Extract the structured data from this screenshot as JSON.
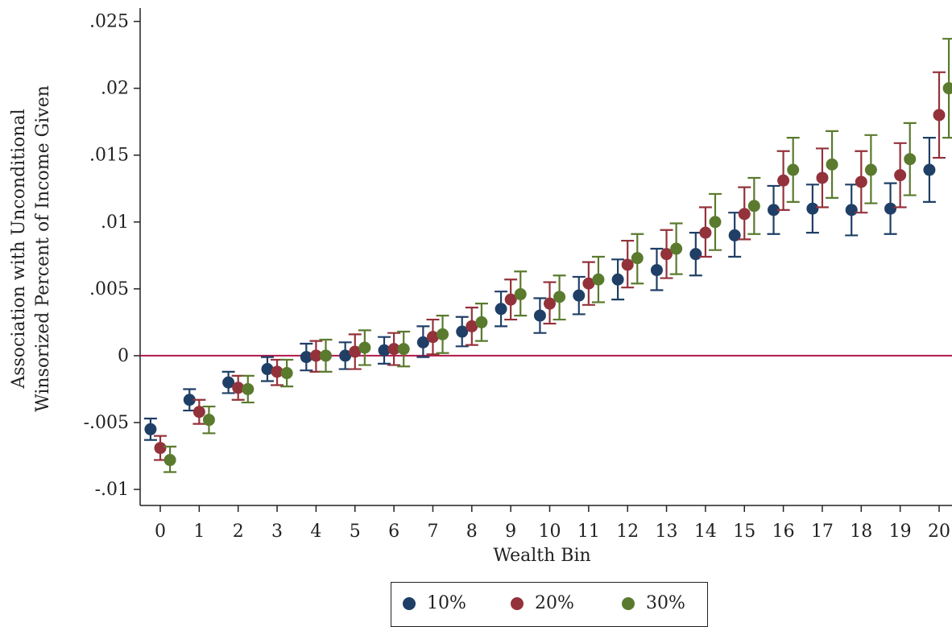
{
  "chart_data": {
    "type": "scatter",
    "subtype": "point estimates with confidence-interval error bars",
    "xlabel": "Wealth Bin",
    "ylabel": [
      "Association with Unconditional",
      "Winsorized Percent of Income Given"
    ],
    "xlim": [
      -0.5,
      20.3
    ],
    "ylim": [
      -0.0112,
      0.026
    ],
    "x_ticks": [
      0,
      1,
      2,
      3,
      4,
      5,
      6,
      7,
      8,
      9,
      10,
      11,
      12,
      13,
      14,
      15,
      16,
      17,
      18,
      19,
      20
    ],
    "y_ticks": [
      -0.01,
      -0.005,
      0,
      0.005,
      0.01,
      0.015,
      0.02,
      0.025
    ],
    "y_tick_labels": [
      "-.01",
      "-.005",
      "0",
      ".005",
      ".01",
      ".015",
      ".02",
      ".025"
    ],
    "reference_line": {
      "y": 0,
      "color": "#b0184a"
    },
    "grid": false,
    "legend_position": "bottom",
    "series": [
      {
        "name": "10%",
        "color": "#1f3f66",
        "offset": -0.25,
        "values": [
          -0.0055,
          -0.0033,
          -0.002,
          -0.001,
          -0.0001,
          0.0,
          0.0004,
          0.001,
          0.0018,
          0.0035,
          0.003,
          0.0045,
          0.0057,
          0.0064,
          0.0076,
          0.009,
          0.0109,
          0.011,
          0.0109,
          0.011,
          0.0139
        ],
        "ci_low": [
          -0.0063,
          -0.0041,
          -0.0028,
          -0.0019,
          -0.0011,
          -0.001,
          -0.0006,
          -0.0001,
          0.0007,
          0.0022,
          0.0017,
          0.0031,
          0.0042,
          0.0049,
          0.006,
          0.0074,
          0.0091,
          0.0092,
          0.009,
          0.0091,
          0.0115
        ],
        "ci_high": [
          -0.0047,
          -0.0025,
          -0.0012,
          -0.0001,
          0.0009,
          0.001,
          0.0014,
          0.0022,
          0.0029,
          0.0048,
          0.0043,
          0.0059,
          0.0072,
          0.008,
          0.0092,
          0.0107,
          0.0127,
          0.0128,
          0.0128,
          0.0129,
          0.0163
        ]
      },
      {
        "name": "20%",
        "color": "#93323a",
        "offset": 0,
        "values": [
          -0.0069,
          -0.0042,
          -0.0024,
          -0.0012,
          0.0,
          0.0003,
          0.0005,
          0.0014,
          0.0022,
          0.0042,
          0.0039,
          0.0054,
          0.0068,
          0.0076,
          0.0092,
          0.0106,
          0.0131,
          0.0133,
          0.013,
          0.0135,
          0.018
        ],
        "ci_low": [
          -0.0078,
          -0.0051,
          -0.0033,
          -0.0022,
          -0.0012,
          -0.001,
          -0.0007,
          0.0001,
          0.0008,
          0.0027,
          0.0024,
          0.0038,
          0.0051,
          0.0058,
          0.0074,
          0.0087,
          0.0109,
          0.0111,
          0.0107,
          0.0111,
          0.0148
        ],
        "ci_high": [
          -0.006,
          -0.0033,
          -0.0015,
          -0.0003,
          0.0011,
          0.0016,
          0.0017,
          0.0027,
          0.0036,
          0.0057,
          0.0055,
          0.007,
          0.0086,
          0.0094,
          0.0111,
          0.0126,
          0.0153,
          0.0155,
          0.0153,
          0.0159,
          0.0212
        ]
      },
      {
        "name": "30%",
        "color": "#5a7a2e",
        "offset": 0.25,
        "values": [
          -0.0078,
          -0.0048,
          -0.0025,
          -0.0013,
          0.0,
          0.0006,
          0.0005,
          0.0016,
          0.0025,
          0.0046,
          0.0044,
          0.0057,
          0.0073,
          0.008,
          0.01,
          0.0112,
          0.0139,
          0.0143,
          0.0139,
          0.0147,
          0.02
        ],
        "ci_low": [
          -0.0087,
          -0.0058,
          -0.0035,
          -0.0023,
          -0.0012,
          -0.0007,
          -0.0008,
          0.0002,
          0.0011,
          0.003,
          0.0027,
          0.004,
          0.0054,
          0.0061,
          0.0079,
          0.0091,
          0.0115,
          0.0118,
          0.0114,
          0.012,
          0.0163
        ],
        "ci_high": [
          -0.0068,
          -0.0038,
          -0.0015,
          -0.0003,
          0.0012,
          0.0019,
          0.0018,
          0.003,
          0.0039,
          0.0063,
          0.006,
          0.0074,
          0.0091,
          0.0099,
          0.0121,
          0.0133,
          0.0163,
          0.0168,
          0.0165,
          0.0174,
          0.0237
        ]
      }
    ]
  }
}
